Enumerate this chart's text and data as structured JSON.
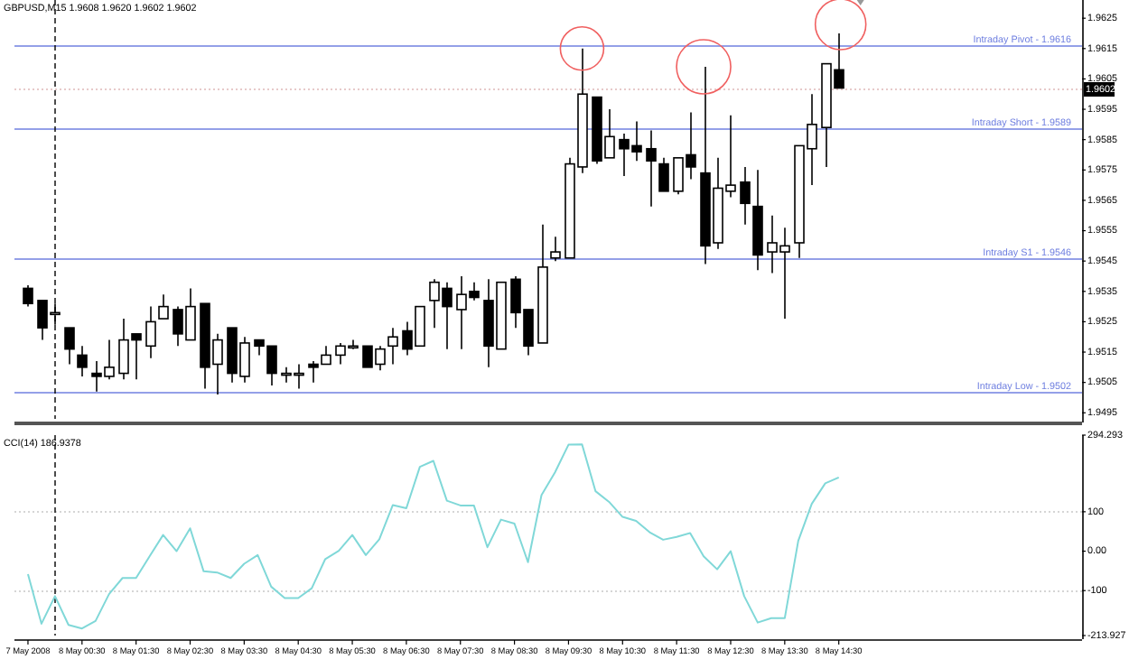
{
  "chart_data": [
    {
      "type": "candlestick",
      "title": "GBPUSD,M15 1.9608 1.9620 1.9602 1.9602",
      "x": [
        "2008-05-07T23:30",
        "2008-05-07T23:45",
        "2008-05-08T00:00",
        "2008-05-08T00:15",
        "2008-05-08T00:30",
        "2008-05-08T00:45",
        "2008-05-08T01:00",
        "2008-05-08T01:15",
        "2008-05-08T01:30",
        "2008-05-08T01:45",
        "2008-05-08T02:00",
        "2008-05-08T02:15",
        "2008-05-08T02:30",
        "2008-05-08T02:45",
        "2008-05-08T03:00",
        "2008-05-08T03:15",
        "2008-05-08T03:30",
        "2008-05-08T03:45",
        "2008-05-08T04:00",
        "2008-05-08T04:15",
        "2008-05-08T04:30",
        "2008-05-08T04:45",
        "2008-05-08T05:00",
        "2008-05-08T05:15",
        "2008-05-08T05:30",
        "2008-05-08T05:45",
        "2008-05-08T06:00",
        "2008-05-08T06:15",
        "2008-05-08T06:30",
        "2008-05-08T06:45",
        "2008-05-08T07:00",
        "2008-05-08T07:15",
        "2008-05-08T07:30",
        "2008-05-08T07:45",
        "2008-05-08T08:00",
        "2008-05-08T08:15",
        "2008-05-08T08:30",
        "2008-05-08T08:45",
        "2008-05-08T09:00",
        "2008-05-08T09:15",
        "2008-05-08T09:30",
        "2008-05-08T09:45",
        "2008-05-08T10:00",
        "2008-05-08T10:15",
        "2008-05-08T10:30",
        "2008-05-08T10:45",
        "2008-05-08T11:00",
        "2008-05-08T11:15",
        "2008-05-08T11:30",
        "2008-05-08T11:45",
        "2008-05-08T12:00",
        "2008-05-08T12:15",
        "2008-05-08T12:30",
        "2008-05-08T12:45",
        "2008-05-08T13:00",
        "2008-05-08T13:15",
        "2008-05-08T13:30",
        "2008-05-08T13:45",
        "2008-05-08T14:00",
        "2008-05-08T14:15",
        "2008-05-08T14:30"
      ],
      "ohlc": [
        [
          1.9536,
          1.9537,
          1.953,
          1.9531
        ],
        [
          1.9532,
          1.9532,
          1.9519,
          1.9523
        ],
        [
          1.9528,
          1.9531,
          1.9524,
          1.9528
        ],
        [
          1.9523,
          1.9523,
          1.9511,
          1.9516
        ],
        [
          1.9514,
          1.9517,
          1.9507,
          1.951
        ],
        [
          1.9508,
          1.9512,
          1.9502,
          1.9507
        ],
        [
          1.9507,
          1.9519,
          1.9506,
          1.951
        ],
        [
          1.9508,
          1.9526,
          1.9506,
          1.9519
        ],
        [
          1.9521,
          1.9521,
          1.9506,
          1.9519
        ],
        [
          1.9517,
          1.953,
          1.9513,
          1.9525
        ],
        [
          1.9526,
          1.9534,
          1.9526,
          1.953
        ],
        [
          1.9529,
          1.953,
          1.9517,
          1.9521
        ],
        [
          1.9519,
          1.9536,
          1.9519,
          1.953
        ],
        [
          1.9531,
          1.9531,
          1.9503,
          1.951
        ],
        [
          1.9511,
          1.9521,
          1.9501,
          1.9519
        ],
        [
          1.9523,
          1.9523,
          1.9505,
          1.9508
        ],
        [
          1.9507,
          1.952,
          1.9505,
          1.9518
        ],
        [
          1.9519,
          1.9519,
          1.9514,
          1.9517
        ],
        [
          1.9517,
          1.9517,
          1.9504,
          1.9508
        ],
        [
          1.9508,
          1.951,
          1.9505,
          1.9508
        ],
        [
          1.9508,
          1.9511,
          1.9503,
          1.9508
        ],
        [
          1.9511,
          1.9512,
          1.9505,
          1.951
        ],
        [
          1.9511,
          1.9517,
          1.9511,
          1.9514
        ],
        [
          1.9514,
          1.9518,
          1.9511,
          1.9517
        ],
        [
          1.9517,
          1.9519,
          1.9516,
          1.9517
        ],
        [
          1.9517,
          1.9517,
          1.951,
          1.951
        ],
        [
          1.9511,
          1.9517,
          1.9509,
          1.9516
        ],
        [
          1.9517,
          1.9523,
          1.9511,
          1.952
        ],
        [
          1.9522,
          1.9525,
          1.9514,
          1.9516
        ],
        [
          1.9517,
          1.953,
          1.9517,
          1.953
        ],
        [
          1.9532,
          1.9539,
          1.9523,
          1.9538
        ],
        [
          1.9536,
          1.9538,
          1.9516,
          1.953
        ],
        [
          1.9529,
          1.954,
          1.9516,
          1.9534
        ],
        [
          1.9535,
          1.9538,
          1.9532,
          1.9533
        ],
        [
          1.9532,
          1.9539,
          1.951,
          1.9517
        ],
        [
          1.9516,
          1.9538,
          1.9516,
          1.9538
        ],
        [
          1.9539,
          1.954,
          1.9523,
          1.9528
        ],
        [
          1.9529,
          1.9529,
          1.9514,
          1.9517
        ],
        [
          1.9518,
          1.9557,
          1.9518,
          1.9543
        ],
        [
          1.9546,
          1.9553,
          1.9545,
          1.9548
        ],
        [
          1.9546,
          1.9579,
          1.9546,
          1.9577
        ],
        [
          1.9576,
          1.9615,
          1.9574,
          1.96
        ],
        [
          1.9599,
          1.9599,
          1.9577,
          1.9578
        ],
        [
          1.9579,
          1.9595,
          1.9579,
          1.9586
        ],
        [
          1.9585,
          1.9587,
          1.9573,
          1.9582
        ],
        [
          1.9583,
          1.9591,
          1.9578,
          1.9581
        ],
        [
          1.9582,
          1.9588,
          1.9563,
          1.9578
        ],
        [
          1.9577,
          1.9579,
          1.9568,
          1.9568
        ],
        [
          1.9568,
          1.9579,
          1.9567,
          1.9579
        ],
        [
          1.958,
          1.9594,
          1.9572,
          1.9576
        ],
        [
          1.9574,
          1.9609,
          1.9544,
          1.955
        ],
        [
          1.9551,
          1.9579,
          1.9549,
          1.9569
        ],
        [
          1.9568,
          1.9593,
          1.9566,
          1.957
        ],
        [
          1.9571,
          1.9576,
          1.9557,
          1.9564
        ],
        [
          1.9563,
          1.9575,
          1.9542,
          1.9547
        ],
        [
          1.9548,
          1.956,
          1.9541,
          1.9551
        ],
        [
          1.9548,
          1.9556,
          1.9526,
          1.955
        ],
        [
          1.9551,
          1.9583,
          1.9546,
          1.9583
        ],
        [
          1.9582,
          1.96,
          1.957,
          1.959
        ],
        [
          1.9589,
          1.961,
          1.9576,
          1.961
        ],
        [
          1.9608,
          1.962,
          1.9602,
          1.9602
        ]
      ],
      "xlim": [
        "2008-05-07T23:15",
        "2008-05-08T19:00"
      ],
      "ylim": [
        1.9493,
        1.9631
      ],
      "yticks": [
        1.9625,
        1.9615,
        1.9605,
        1.9595,
        1.9585,
        1.9575,
        1.9565,
        1.9555,
        1.9545,
        1.9535,
        1.9525,
        1.9515,
        1.9505,
        1.9495
      ],
      "tick_labels": "y",
      "ref_lines": [
        {
          "axis": "y",
          "value": 1.9616,
          "label": "Intraday Pivot - 1.9616",
          "color": "#7080e0"
        },
        {
          "axis": "y",
          "value": 1.9589,
          "label": "Intraday Short - 1.9589",
          "color": "#7080e0"
        },
        {
          "axis": "y",
          "value": 1.9546,
          "label": "Intraday S1 - 1.9546",
          "color": "#7080e0"
        },
        {
          "axis": "y",
          "value": 1.9502,
          "label": "Intraday Low - 1.9502",
          "color": "#7080e0"
        },
        {
          "axis": "y",
          "value": 1.9602,
          "label": "1.9602",
          "color": "#e0b8b8",
          "line_style": "dotted"
        },
        {
          "axis": "x",
          "value": "2008-05-08T00:00",
          "color": "#000000",
          "line_style": "dashed"
        }
      ]
    },
    {
      "type": "line",
      "title": "CCI(14) 186.9378",
      "x": [
        "2008-05-07T23:30",
        "2008-05-07T23:45",
        "2008-05-08T00:00",
        "2008-05-08T00:15",
        "2008-05-08T00:30",
        "2008-05-08T00:45",
        "2008-05-08T01:00",
        "2008-05-08T01:15",
        "2008-05-08T01:30",
        "2008-05-08T01:45",
        "2008-05-08T02:00",
        "2008-05-08T02:15",
        "2008-05-08T02:30",
        "2008-05-08T02:45",
        "2008-05-08T03:00",
        "2008-05-08T03:15",
        "2008-05-08T03:30",
        "2008-05-08T03:45",
        "2008-05-08T04:00",
        "2008-05-08T04:15",
        "2008-05-08T04:30",
        "2008-05-08T04:45",
        "2008-05-08T05:00",
        "2008-05-08T05:15",
        "2008-05-08T05:30",
        "2008-05-08T05:45",
        "2008-05-08T06:00",
        "2008-05-08T06:15",
        "2008-05-08T06:30",
        "2008-05-08T06:45",
        "2008-05-08T07:00",
        "2008-05-08T07:15",
        "2008-05-08T07:30",
        "2008-05-08T07:45",
        "2008-05-08T08:00",
        "2008-05-08T08:15",
        "2008-05-08T08:30",
        "2008-05-08T08:45",
        "2008-05-08T09:00",
        "2008-05-08T09:15",
        "2008-05-08T09:30",
        "2008-05-08T09:45",
        "2008-05-08T10:00",
        "2008-05-08T10:15",
        "2008-05-08T10:30",
        "2008-05-08T10:45",
        "2008-05-08T11:00",
        "2008-05-08T11:15",
        "2008-05-08T11:30",
        "2008-05-08T11:45",
        "2008-05-08T12:00",
        "2008-05-08T12:15",
        "2008-05-08T12:30",
        "2008-05-08T12:45",
        "2008-05-08T13:00",
        "2008-05-08T13:15",
        "2008-05-08T13:30",
        "2008-05-08T13:45",
        "2008-05-08T14:00",
        "2008-05-08T14:15",
        "2008-05-08T14:30"
      ],
      "series": [
        {
          "color": "#80d8d8",
          "values": [
            -58,
            -184,
            -114,
            -187,
            -196,
            -177,
            -109,
            -68,
            -68,
            -13,
            41,
            0,
            58,
            -51,
            -54,
            -68,
            -32,
            -10,
            -90,
            -119,
            -119,
            -94,
            -20,
            1,
            41,
            -10,
            30,
            117,
            109,
            214,
            229,
            128,
            116,
            116,
            10,
            80,
            70,
            -28,
            142,
            200,
            270,
            271,
            152,
            125,
            87,
            77,
            48,
            29,
            36,
            46,
            -13,
            -46,
            0,
            -114,
            -181,
            -170,
            -170,
            26,
            120,
            172,
            187
          ]
        }
      ],
      "xlim": [
        "2008-05-07T23:15",
        "2008-05-08T19:00"
      ],
      "ylim": [
        -213.927,
        294.293
      ],
      "xticks": [
        {
          "value": "2008-05-07T23:30",
          "label": "7 May 2008"
        },
        {
          "value": "2008-05-08T00:30",
          "label": "8 May 00:30"
        },
        {
          "value": "2008-05-08T01:30",
          "label": "8 May 01:30"
        },
        {
          "value": "2008-05-08T02:30",
          "label": "8 May 02:30"
        },
        {
          "value": "2008-05-08T03:30",
          "label": "8 May 03:30"
        },
        {
          "value": "2008-05-08T04:30",
          "label": "8 May 04:30"
        },
        {
          "value": "2008-05-08T05:30",
          "label": "8 May 05:30"
        },
        {
          "value": "2008-05-08T06:30",
          "label": "8 May 06:30"
        },
        {
          "value": "2008-05-08T07:30",
          "label": "8 May 07:30"
        },
        {
          "value": "2008-05-08T08:30",
          "label": "8 May 08:30"
        },
        {
          "value": "2008-05-08T09:30",
          "label": "8 May 09:30"
        },
        {
          "value": "2008-05-08T10:30",
          "label": "8 May 10:30"
        },
        {
          "value": "2008-05-08T11:30",
          "label": "8 May 11:30"
        },
        {
          "value": "2008-05-08T12:30",
          "label": "8 May 12:30"
        },
        {
          "value": "2008-05-08T13:30",
          "label": "8 May 13:30"
        },
        {
          "value": "2008-05-08T14:30",
          "label": "8 May 14:30"
        }
      ],
      "yticks": [
        294.293,
        100,
        {
          "value": 0,
          "label": "0.00"
        },
        -100,
        -213.927
      ],
      "ref_lines": [
        {
          "axis": "y",
          "value": 100,
          "color": "#c8c8c8",
          "line_style": "dotted"
        },
        {
          "axis": "y",
          "value": -100,
          "color": "#c8c8c8",
          "line_style": "dotted"
        },
        {
          "axis": "x",
          "value": "2008-05-08T00:00",
          "color": "#000000",
          "line_style": "dashed"
        }
      ]
    }
  ]
}
